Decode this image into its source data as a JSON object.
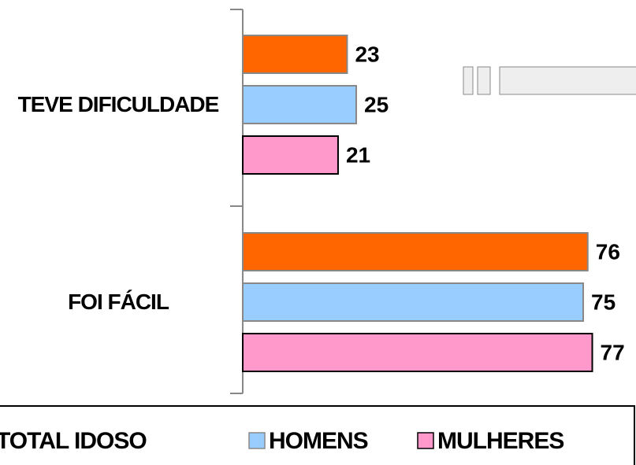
{
  "chart_data": {
    "type": "bar",
    "orientation": "horizontal",
    "categories": [
      "TEVE DIFICULDADE",
      "FOI FÁCIL"
    ],
    "series": [
      {
        "name": "TOTAL IDOSO",
        "color": "#ff6600",
        "values": [
          23,
          76
        ]
      },
      {
        "name": "HOMENS",
        "color": "#99ccff",
        "values": [
          25,
          75
        ]
      },
      {
        "name": "MULHERES",
        "color": "#ff99cc",
        "values": [
          21,
          77
        ]
      }
    ],
    "legend": "bottom"
  }
}
